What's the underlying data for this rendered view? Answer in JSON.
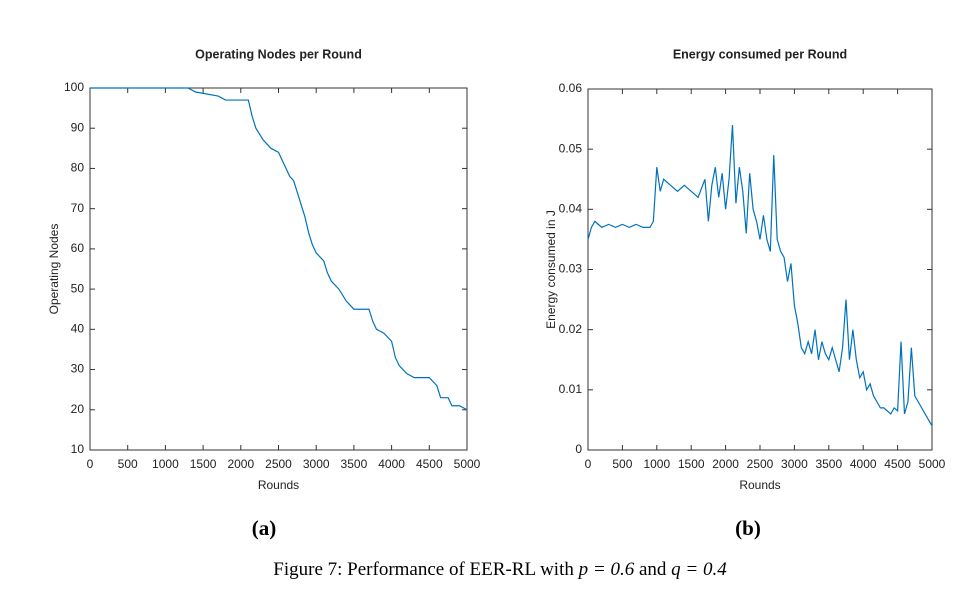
{
  "chart_data": [
    {
      "type": "line",
      "title": "Operating Nodes per Round",
      "xlabel": "Rounds",
      "ylabel": "Operating Nodes",
      "caption": "(a)",
      "xlim": [
        0,
        5000
      ],
      "xticks": [
        0,
        500,
        1000,
        1500,
        2000,
        2500,
        3000,
        3500,
        4000,
        4500,
        5000
      ],
      "ylim": [
        10,
        100
      ],
      "yticks": [
        10,
        20,
        30,
        40,
        50,
        60,
        70,
        80,
        90,
        100
      ],
      "grid": false,
      "x": [
        0,
        1000,
        1300,
        1400,
        1700,
        1800,
        2000,
        2100,
        2150,
        2200,
        2300,
        2400,
        2500,
        2600,
        2650,
        2700,
        2750,
        2800,
        2850,
        2900,
        2950,
        3000,
        3100,
        3150,
        3200,
        3300,
        3400,
        3500,
        3600,
        3700,
        3750,
        3800,
        3900,
        4000,
        4050,
        4100,
        4200,
        4300,
        4500,
        4600,
        4650,
        4750,
        4800,
        4900,
        5000
      ],
      "series": [
        {
          "name": "Operating Nodes",
          "color": "#0072bd",
          "values": [
            100,
            100,
            100,
            99,
            98,
            97,
            97,
            97,
            93,
            90,
            87,
            85,
            84,
            80,
            78,
            77,
            74,
            71,
            68,
            64,
            61,
            59,
            57,
            54,
            52,
            50,
            47,
            45,
            45,
            45,
            42,
            40,
            39,
            37,
            33,
            31,
            29,
            28,
            28,
            26,
            23,
            23,
            21,
            21,
            20
          ]
        }
      ]
    },
    {
      "type": "line",
      "title": "Energy consumed per Round",
      "xlabel": "Rounds",
      "ylabel": "Energy consumed in J",
      "caption": "(b)",
      "xlim": [
        0,
        5000
      ],
      "xticks": [
        0,
        500,
        1000,
        1500,
        2000,
        2500,
        3000,
        3500,
        4000,
        4500,
        5000
      ],
      "ylim": [
        0,
        0.06
      ],
      "yticks": [
        0,
        0.01,
        0.02,
        0.03,
        0.04,
        0.05,
        0.06
      ],
      "grid": false,
      "x": [
        0,
        50,
        100,
        200,
        300,
        400,
        500,
        600,
        700,
        800,
        900,
        950,
        1000,
        1050,
        1100,
        1200,
        1300,
        1400,
        1500,
        1600,
        1700,
        1750,
        1800,
        1850,
        1900,
        1950,
        2000,
        2050,
        2100,
        2150,
        2200,
        2250,
        2300,
        2350,
        2400,
        2450,
        2500,
        2550,
        2600,
        2650,
        2700,
        2750,
        2800,
        2850,
        2900,
        2950,
        3000,
        3050,
        3100,
        3150,
        3200,
        3250,
        3300,
        3350,
        3400,
        3450,
        3500,
        3550,
        3600,
        3650,
        3700,
        3750,
        3800,
        3850,
        3900,
        3950,
        4000,
        4050,
        4100,
        4150,
        4200,
        4250,
        4300,
        4400,
        4450,
        4500,
        4550,
        4600,
        4650,
        4700,
        4750,
        4800,
        4850,
        4900,
        4950,
        5000
      ],
      "series": [
        {
          "name": "Energy consumed",
          "color": "#0072bd",
          "values": [
            0.035,
            0.037,
            0.038,
            0.037,
            0.0375,
            0.037,
            0.0375,
            0.037,
            0.0375,
            0.037,
            0.037,
            0.038,
            0.047,
            0.043,
            0.045,
            0.044,
            0.043,
            0.044,
            0.043,
            0.042,
            0.045,
            0.038,
            0.044,
            0.047,
            0.042,
            0.046,
            0.04,
            0.045,
            0.054,
            0.041,
            0.047,
            0.043,
            0.036,
            0.046,
            0.04,
            0.038,
            0.035,
            0.039,
            0.035,
            0.033,
            0.049,
            0.035,
            0.033,
            0.032,
            0.028,
            0.031,
            0.024,
            0.021,
            0.017,
            0.016,
            0.018,
            0.016,
            0.02,
            0.015,
            0.018,
            0.016,
            0.015,
            0.017,
            0.015,
            0.013,
            0.017,
            0.025,
            0.015,
            0.02,
            0.015,
            0.012,
            0.013,
            0.01,
            0.011,
            0.009,
            0.008,
            0.007,
            0.007,
            0.006,
            0.007,
            0.0065,
            0.018,
            0.006,
            0.008,
            0.017,
            0.009,
            0.008,
            0.007,
            0.006,
            0.005,
            0.004
          ]
        }
      ]
    }
  ],
  "figure_caption": [
    "Figure 7: Performance of EER-RL with",
    "p = 0.6",
    "and",
    "q = 0.4"
  ]
}
